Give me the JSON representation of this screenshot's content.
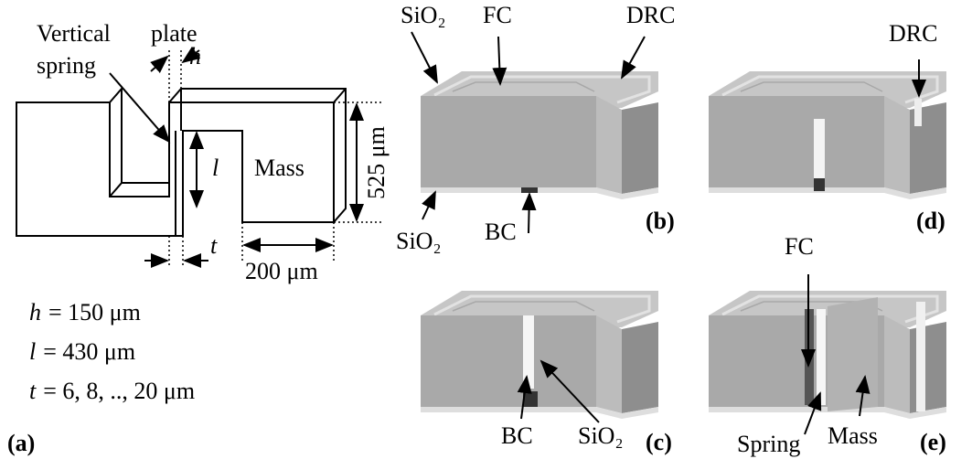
{
  "panel_a": {
    "label": "(a)",
    "vertical": "Vertical",
    "spring": "spring",
    "plate": "plate",
    "h": "h",
    "l": "l",
    "mass": "Mass",
    "height": "525 μm",
    "t": "t",
    "width": "200 μm",
    "equations": [
      {
        "symbol": "h",
        "text": "= 150 μm"
      },
      {
        "symbol": "l",
        "text": "= 430 μm"
      },
      {
        "symbol": "t",
        "text": "= 6, 8,  .., 20 μm"
      }
    ]
  },
  "panel_b": {
    "label": "(b)",
    "annotations": [
      "SiO₂",
      "FC",
      "DRC",
      "SiO₂",
      "BC"
    ]
  },
  "panel_c": {
    "label": "(c)",
    "annotations": [
      "BC",
      "SiO₂"
    ]
  },
  "panel_d": {
    "label": "(d)",
    "annotations": [
      "DRC"
    ]
  },
  "panel_e": {
    "label": "(e)",
    "annotations": [
      "FC",
      "Spring",
      "Mass"
    ]
  }
}
